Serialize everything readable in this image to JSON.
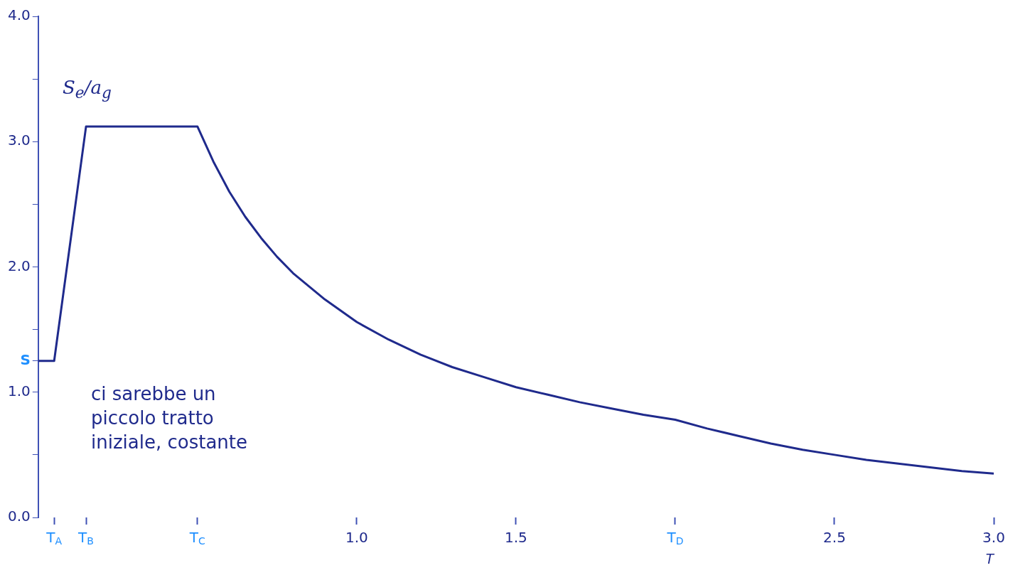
{
  "chart_data": {
    "type": "line",
    "xlabel": "T",
    "ylabel": "S$_{e}$/a$_{g}$",
    "annotations": [
      "ci sarebbe un\npiccolo tratto\niniziale, costante"
    ],
    "x": [
      0,
      0.05,
      0.15,
      0.5,
      0.55,
      0.6,
      0.65,
      0.7,
      0.75,
      0.8,
      0.9,
      1.0,
      1.1,
      1.2,
      1.3,
      1.4,
      1.5,
      1.6,
      1.7,
      1.8,
      1.9,
      2.0,
      2.1,
      2.2,
      2.3,
      2.4,
      2.5,
      2.6,
      2.7,
      2.8,
      2.9,
      3.0
    ],
    "series": [
      {
        "color": "#1f2a8c",
        "values": [
          1.25,
          1.25,
          3.12,
          3.12,
          2.84,
          2.6,
          2.4,
          2.23,
          2.08,
          1.95,
          1.74,
          1.56,
          1.42,
          1.3,
          1.2,
          1.12,
          1.04,
          0.98,
          0.92,
          0.87,
          0.82,
          0.78,
          0.71,
          0.65,
          0.59,
          0.54,
          0.5,
          0.46,
          0.43,
          0.4,
          0.37,
          0.35
        ]
      }
    ],
    "xlim": [
      0,
      3.0
    ],
    "ylim": [
      0,
      4.0
    ],
    "xticks": [
      {
        "value": 0.05,
        "label": "T$_{A}$"
      },
      {
        "value": 0.15,
        "label": "T$_{B}$"
      },
      {
        "value": 0.5,
        "label": "T$_{C}$"
      },
      {
        "value": 1.0,
        "label": "1.0"
      },
      {
        "value": 1.5,
        "label": "1.5"
      },
      {
        "value": 2.0,
        "label": "T$_{D}$"
      },
      {
        "value": 2.5,
        "label": "2.5"
      },
      {
        "value": 3.0,
        "label": "3.0"
      }
    ],
    "yticks": [
      {
        "value": 0,
        "label": "0.0"
      },
      {
        "value": 0.5,
        "label": null
      },
      {
        "value": 1.0,
        "label": "1.0"
      },
      {
        "value": 1.25,
        "label": "S"
      },
      {
        "value": 1.5,
        "label": null
      },
      {
        "value": 2.0,
        "label": "2.0"
      },
      {
        "value": 2.5,
        "label": null
      },
      {
        "value": 3.0,
        "label": "3.0"
      },
      {
        "value": 3.5,
        "label": null
      },
      {
        "value": 4.0,
        "label": "4.0"
      }
    ],
    "grid": false,
    "legend": false,
    "marker": "none",
    "line_style": "solid"
  }
}
